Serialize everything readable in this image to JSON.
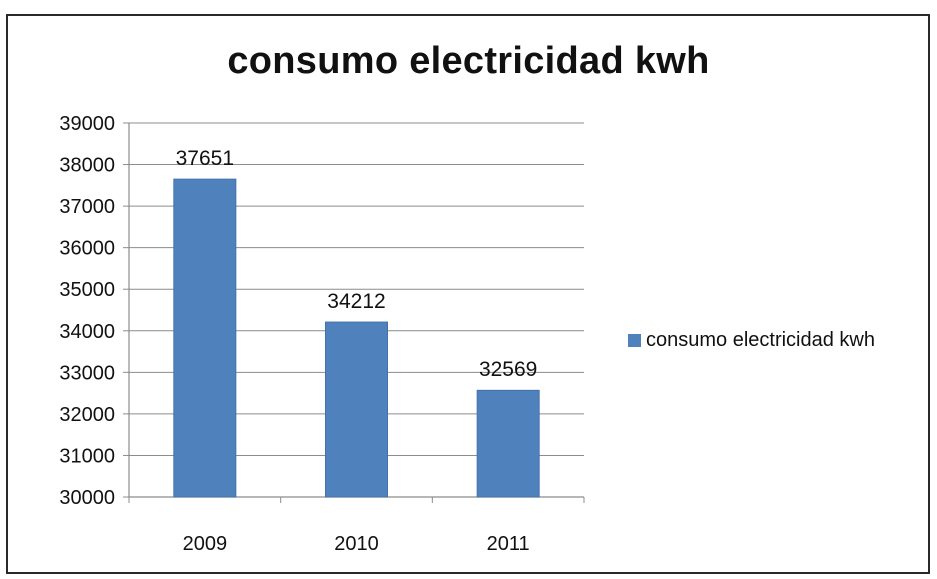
{
  "chart_data": {
    "type": "bar",
    "title": "consumo electricidad kwh",
    "categories": [
      "2009",
      "2010",
      "2011"
    ],
    "series": [
      {
        "name": "consumo electricidad kwh",
        "values": [
          37651,
          34212,
          32569
        ],
        "color": "#4f81bd"
      }
    ],
    "data_labels": [
      "37651",
      "34212",
      "32569"
    ],
    "ylim": [
      30000,
      39000
    ],
    "ytick_step": 1000,
    "yticks": [
      "30000",
      "31000",
      "32000",
      "33000",
      "34000",
      "35000",
      "36000",
      "37000",
      "38000",
      "39000"
    ],
    "xlabel": "",
    "ylabel": "",
    "grid": true,
    "legend_position": "right"
  }
}
